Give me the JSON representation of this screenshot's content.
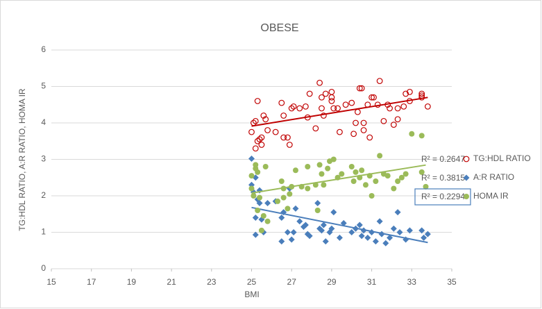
{
  "chart_data": {
    "type": "scatter",
    "title": "OBESE",
    "x_label": "BMI",
    "y_label": "TG:HDL RATIO, A:R RATIO, HOMA IR",
    "xlim": [
      15,
      35
    ],
    "xticks": [
      15,
      17,
      19,
      21,
      23,
      25,
      27,
      29,
      31,
      33,
      35
    ],
    "ylim": [
      0,
      6
    ],
    "yticks": [
      0,
      1,
      2,
      3,
      4,
      5,
      6
    ],
    "grid": true,
    "legend": "right",
    "series": [
      {
        "name": "TG:HDL RATIO",
        "color": "#c00000",
        "marker": "open-circle",
        "r2_label": "R² = 0.2647",
        "x": [
          25,
          25.1,
          25.2,
          25.3,
          25.2,
          25.3,
          25.4,
          25.5,
          25.5,
          25.6,
          25.8,
          25.7,
          26.2,
          26.5,
          26.6,
          26.6,
          26.8,
          26.9,
          27,
          27.1,
          27.4,
          27.7,
          27.8,
          27.9,
          28.2,
          28.4,
          28.5,
          28.5,
          28.6,
          28.7,
          29,
          29,
          29,
          29.1,
          29.3,
          29.4,
          29.7,
          30,
          30.1,
          30.2,
          30.3,
          30.4,
          30.5,
          30.6,
          30.6,
          30.8,
          30.9,
          31,
          31.1,
          31.3,
          31.4,
          31.6,
          31.8,
          31.9,
          32.1,
          32.3,
          32.3,
          32.6,
          32.7,
          32.9,
          32.9,
          33.5,
          33.5,
          33.5,
          33.8
        ],
        "y": [
          3.75,
          4.0,
          4.05,
          4.6,
          3.3,
          3.5,
          3.55,
          3.4,
          3.6,
          4.2,
          3.8,
          4.1,
          3.75,
          4.55,
          4.2,
          3.6,
          3.6,
          3.4,
          4.4,
          4.45,
          4.4,
          4.45,
          4.15,
          4.8,
          3.85,
          5.1,
          4.7,
          4.4,
          4.2,
          4.8,
          4.6,
          4.7,
          4.85,
          4.4,
          4.4,
          3.75,
          4.5,
          4.55,
          3.7,
          4.0,
          4.3,
          4.95,
          4.95,
          4.0,
          3.8,
          4.5,
          3.6,
          4.7,
          4.7,
          4.5,
          5.15,
          4.05,
          4.5,
          4.4,
          3.95,
          4.1,
          4.4,
          4.45,
          4.8,
          4.85,
          4.6,
          4.7,
          4.8,
          4.75,
          4.45
        ]
      },
      {
        "name": "A:R RATIO",
        "color": "#4a7ebb",
        "marker": "diamond",
        "r2_label": "R² = 0.3815",
        "x": [
          25,
          25,
          25.1,
          25.2,
          25.2,
          25.2,
          25.3,
          25.4,
          25.4,
          25.5,
          25.6,
          25.8,
          26.2,
          26.5,
          26.5,
          26.6,
          26.8,
          26.9,
          27,
          27.1,
          27.2,
          27.4,
          27.6,
          27.7,
          27.8,
          27.9,
          28.3,
          28.4,
          28.5,
          28.6,
          28.7,
          28.9,
          29,
          29.1,
          29.4,
          29.6,
          30,
          30.2,
          30.4,
          30.5,
          30.6,
          30.8,
          31,
          31.2,
          31.4,
          31.5,
          31.7,
          31.9,
          32.1,
          32.3,
          32.4,
          32.7,
          32.9,
          33.5,
          33.6,
          33.8
        ],
        "y": [
          3.02,
          2.3,
          2.1,
          2.5,
          1.4,
          0.93,
          1.9,
          2.15,
          1.8,
          1.35,
          1.0,
          1.8,
          1.85,
          1.4,
          0.75,
          1.55,
          1.0,
          2.2,
          0.8,
          1.0,
          1.65,
          1.3,
          1.15,
          1.2,
          0.95,
          0.9,
          1.8,
          1.1,
          1.05,
          1.2,
          0.75,
          1.0,
          1.1,
          1.55,
          0.85,
          1.25,
          1.0,
          1.1,
          1.2,
          0.9,
          1.05,
          0.85,
          1.0,
          0.75,
          1.3,
          0.95,
          0.7,
          0.85,
          1.1,
          1.55,
          1.0,
          0.8,
          1.05,
          1.05,
          0.85,
          0.95
        ]
      },
      {
        "name": "HOMA IR",
        "color": "#9bbb59",
        "marker": "circle",
        "r2_label": "R² = 0.2294",
        "r2_boxed": true,
        "x": [
          25,
          25,
          25.1,
          25.2,
          25.2,
          25.3,
          25.3,
          25.4,
          25.5,
          25.6,
          25.7,
          25.8,
          26.3,
          26.5,
          26.6,
          26.6,
          26.8,
          26.9,
          27,
          27.2,
          27.5,
          27.8,
          27.8,
          28.2,
          28.3,
          28.4,
          28.5,
          28.6,
          28.8,
          28.9,
          29.1,
          29.3,
          29.5,
          30,
          30.1,
          30.2,
          30.4,
          30.5,
          30.7,
          30.9,
          31,
          31.2,
          31.4,
          31.6,
          31.8,
          32.1,
          32.3,
          32.5,
          32.7,
          33.0,
          33.5,
          33.5,
          33.7
        ],
        "y": [
          2.55,
          2.2,
          2.0,
          2.75,
          2.85,
          2.65,
          1.6,
          1.95,
          1.05,
          1.45,
          2.8,
          1.3,
          1.85,
          2.4,
          2.2,
          1.95,
          1.65,
          2.05,
          2.25,
          2.7,
          2.25,
          2.8,
          2.2,
          2.3,
          1.6,
          2.85,
          2.6,
          2.3,
          2.75,
          2.95,
          3.0,
          2.5,
          2.6,
          2.8,
          2.4,
          2.65,
          2.5,
          2.7,
          2.3,
          2.55,
          2.0,
          2.4,
          3.1,
          2.6,
          2.55,
          2.2,
          2.4,
          2.5,
          2.6,
          3.7,
          3.65,
          2.65,
          2.25
        ]
      }
    ]
  }
}
